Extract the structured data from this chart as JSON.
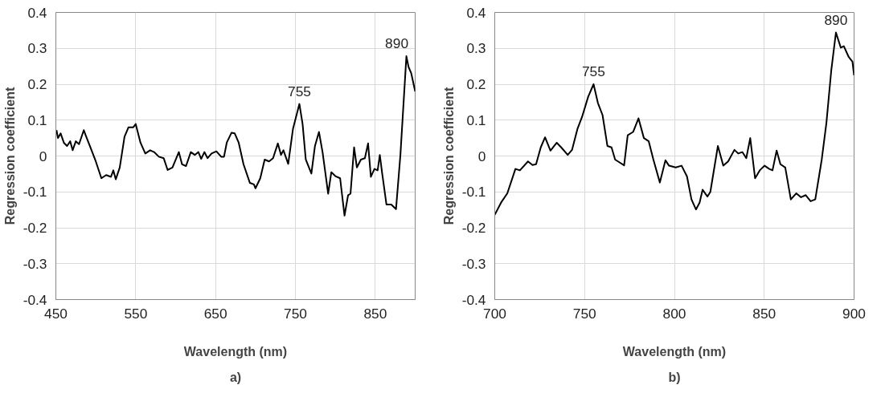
{
  "chart_data": [
    {
      "type": "line",
      "xlabel": "Wavelength (nm)",
      "ylabel": "Regression coefficient",
      "xlim": [
        450,
        900
      ],
      "ylim": [
        -0.4,
        0.4
      ],
      "xticks": [
        450,
        550,
        650,
        750,
        850
      ],
      "yticks": [
        -0.4,
        -0.3,
        -0.2,
        -0.1,
        0,
        0.1,
        0.2,
        0.3,
        0.4
      ],
      "grid": true,
      "annotations": [
        {
          "text": "755",
          "x": 755,
          "y": 0.145
        },
        {
          "text": "890",
          "x": 889,
          "y": 0.278
        },
        "a)"
      ],
      "series": [
        {
          "color": "#000000",
          "x": [
            450.8,
            452.6,
            456,
            460,
            464,
            468,
            471,
            475,
            479,
            485,
            488,
            494,
            500,
            507,
            513,
            519,
            522,
            525,
            530,
            536,
            541,
            547,
            550,
            556,
            562,
            568,
            573,
            579,
            585,
            590,
            596,
            604,
            608,
            613,
            619,
            624,
            628.5,
            632,
            636,
            640,
            645,
            651,
            657,
            660.6,
            664,
            670,
            674,
            679,
            685,
            693,
            698,
            700,
            706,
            711.5,
            717,
            722,
            728,
            732,
            735,
            741,
            747,
            755,
            759,
            763,
            770,
            774.5,
            779.5,
            784,
            791,
            795,
            800,
            806,
            811.5,
            816,
            819,
            823.5,
            827,
            832,
            837,
            841,
            844.5,
            849,
            853,
            855.7,
            858.7,
            864,
            870,
            876,
            881.5,
            889,
            891.7,
            895,
            900
          ],
          "values": [
            0.072,
            0.05,
            0.063,
            0.037,
            0.028,
            0.041,
            0.016,
            0.041,
            0.033,
            0.072,
            0.054,
            0.02,
            -0.015,
            -0.062,
            -0.053,
            -0.058,
            -0.04,
            -0.065,
            -0.032,
            0.054,
            0.08,
            0.08,
            0.089,
            0.037,
            0.007,
            0.016,
            0.011,
            -0.002,
            -0.006,
            -0.039,
            -0.032,
            0.011,
            -0.023,
            -0.028,
            0.011,
            0.003,
            0.011,
            -0.008,
            0.011,
            -0.006,
            0.007,
            0.013,
            -0.002,
            -0.002,
            0.037,
            0.065,
            0.063,
            0.037,
            -0.023,
            -0.075,
            -0.079,
            -0.09,
            -0.062,
            -0.01,
            -0.015,
            -0.006,
            0.035,
            0.003,
            0.016,
            -0.022,
            0.076,
            0.145,
            0.089,
            -0.01,
            -0.049,
            0.028,
            0.067,
            0.011,
            -0.105,
            -0.045,
            -0.056,
            -0.062,
            -0.166,
            -0.109,
            -0.105,
            0.024,
            -0.032,
            -0.01,
            -0.006,
            0.035,
            -0.058,
            -0.036,
            -0.04,
            0.003,
            -0.049,
            -0.135,
            -0.135,
            -0.148,
            0.003,
            0.278,
            0.248,
            0.231,
            0.18
          ]
        }
      ]
    },
    {
      "type": "line",
      "xlabel": "Wavelength (nm)",
      "ylabel": "Regression coefficient",
      "xlim": [
        700,
        900
      ],
      "ylim": [
        -0.4,
        0.4
      ],
      "xticks": [
        700,
        750,
        800,
        850,
        900
      ],
      "yticks": [
        -0.4,
        -0.3,
        -0.2,
        -0.1,
        0,
        0.1,
        0.2,
        0.3,
        0.4
      ],
      "grid": true,
      "annotations": [
        {
          "text": "755",
          "x": 755,
          "y": 0.2
        },
        {
          "text": "890",
          "x": 889.9,
          "y": 0.344
        },
        "b)"
      ],
      "series": [
        {
          "color": "#000000",
          "x": [
            700,
            703.5,
            707,
            711.5,
            714,
            718.5,
            721,
            723,
            725.6,
            728,
            731,
            734.5,
            737,
            740.6,
            743,
            746,
            748.6,
            752,
            755,
            757.4,
            760,
            762.7,
            765,
            767,
            769.8,
            772,
            774,
            777,
            780,
            783,
            785.7,
            788.3,
            791.9,
            795,
            797,
            800.7,
            804,
            807,
            809.5,
            812,
            814,
            815.7,
            818.4,
            820,
            824.2,
            827.2,
            829.9,
            833.4,
            835.5,
            837.8,
            840,
            842.2,
            844.9,
            847.5,
            850.2,
            852.8,
            854.6,
            856.9,
            859,
            861.7,
            864.8,
            867.8,
            870.5,
            873.1,
            875.8,
            878.4,
            882,
            884.6,
            887.3,
            889.9,
            892.6,
            894.3,
            897,
            899.1,
            900
          ],
          "values": [
            -0.164,
            -0.13,
            -0.104,
            -0.036,
            -0.04,
            -0.015,
            -0.025,
            -0.023,
            0.024,
            0.052,
            0.015,
            0.037,
            0.024,
            0.003,
            0.017,
            0.075,
            0.109,
            0.165,
            0.2,
            0.148,
            0.114,
            0.028,
            0.024,
            -0.01,
            -0.019,
            -0.026,
            0.058,
            0.067,
            0.105,
            0.05,
            0.041,
            -0.01,
            -0.074,
            -0.012,
            -0.027,
            -0.032,
            -0.027,
            -0.057,
            -0.121,
            -0.149,
            -0.13,
            -0.094,
            -0.113,
            -0.1,
            0.028,
            -0.027,
            -0.015,
            0.017,
            0.007,
            0.011,
            -0.006,
            0.05,
            -0.062,
            -0.04,
            -0.027,
            -0.036,
            -0.04,
            0.015,
            -0.023,
            -0.032,
            -0.121,
            -0.104,
            -0.115,
            -0.109,
            -0.126,
            -0.121,
            -0.01,
            0.092,
            0.238,
            0.344,
            0.302,
            0.306,
            0.276,
            0.263,
            0.225
          ]
        }
      ]
    }
  ]
}
